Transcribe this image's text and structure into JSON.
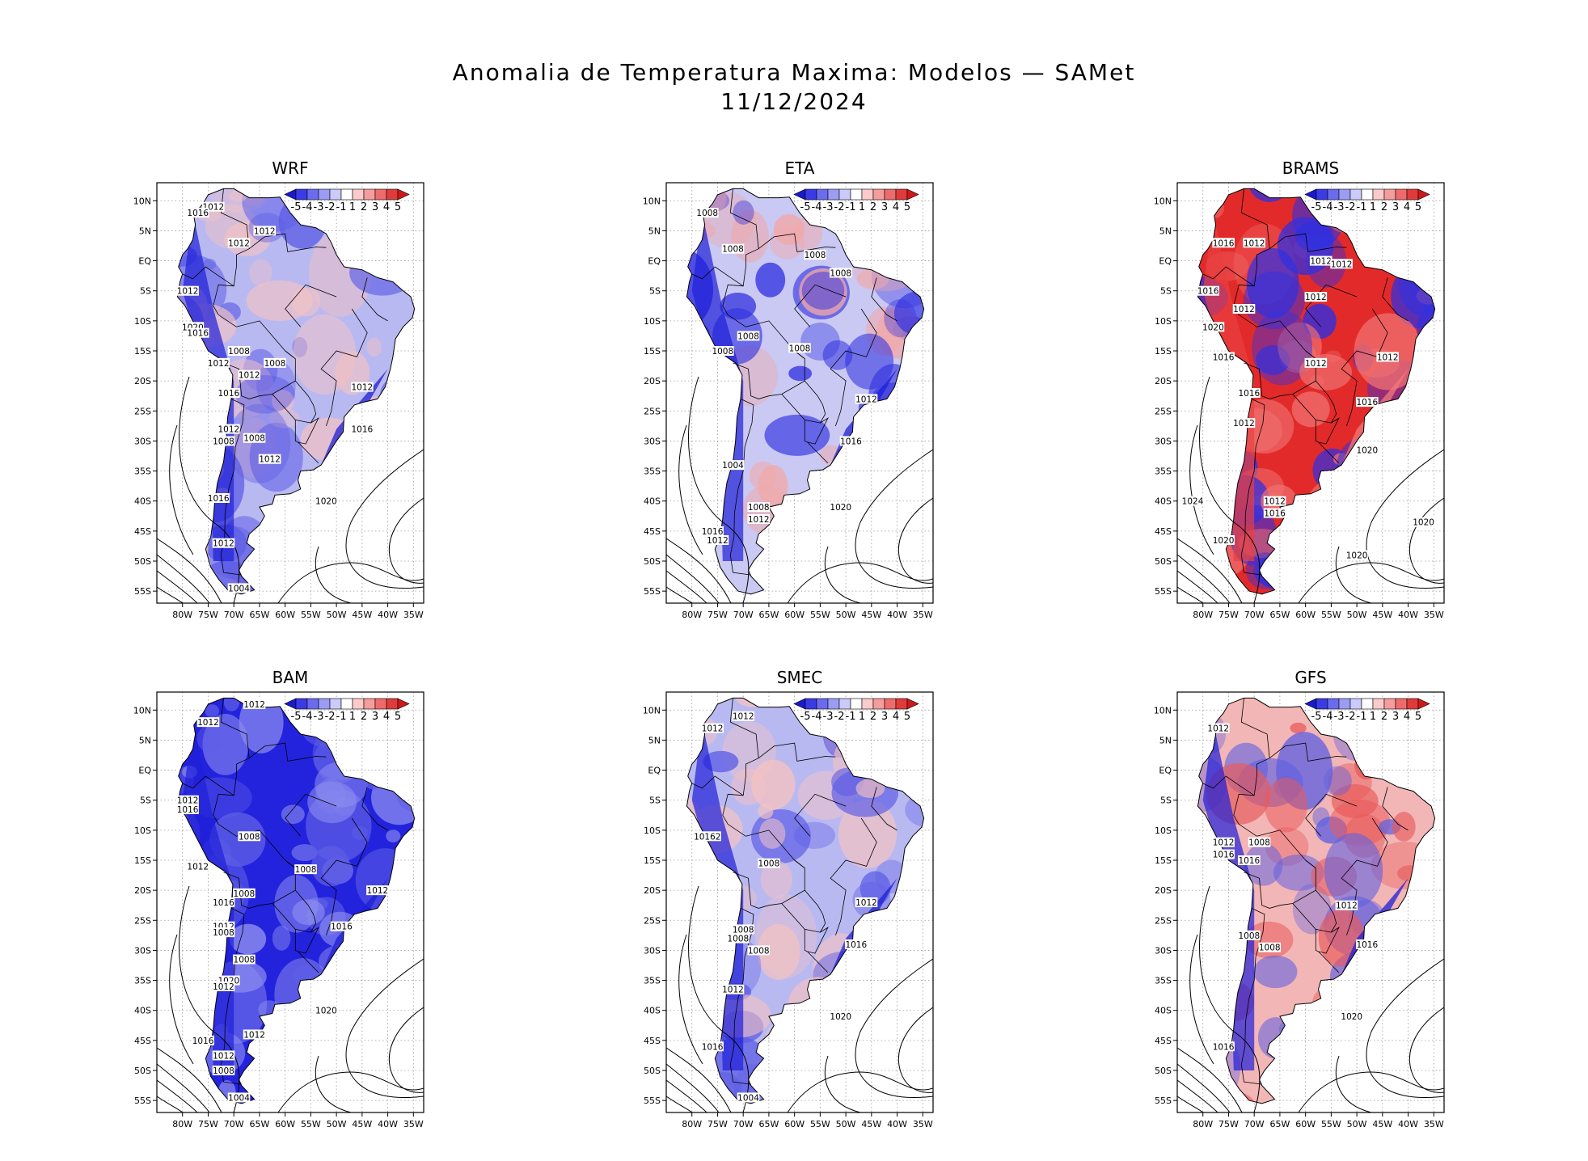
{
  "title": {
    "line1": "Anomalia de Temperatura Maxima: Modelos — SAMet",
    "line2": "11/12/2024"
  },
  "axes": {
    "lat_labels": [
      "10N",
      "5N",
      "EQ",
      "5S",
      "10S",
      "15S",
      "20S",
      "25S",
      "30S",
      "35S",
      "40S",
      "45S",
      "50S",
      "55S"
    ],
    "lon_labels": [
      "80W",
      "75W",
      "70W",
      "65W",
      "60W",
      "55W",
      "50W",
      "45W",
      "40W",
      "35W"
    ]
  },
  "colorbar": {
    "labels": [
      "-5",
      "-4",
      "-3",
      "-2",
      "-1",
      "1",
      "2",
      "3",
      "4",
      "5"
    ],
    "colors": [
      "#1a1acc",
      "#3b3be6",
      "#6b6bf0",
      "#9c9cf5",
      "#cacafb",
      "#ffffff",
      "#fbcaca",
      "#f59c9c",
      "#ef6b6b",
      "#e03b3b",
      "#cc1a1a"
    ]
  },
  "colors": {
    "cold": "#2323dd",
    "cold_light": "#a8a8ef",
    "warm": "#e32a2a",
    "warm_light": "#f3b3b3"
  },
  "panels": [
    {
      "name": "WRF",
      "tone": "mixed-cold",
      "isobars": [
        {
          "text": "1012",
          "lat": 9,
          "lon": -74
        },
        {
          "text": "1016",
          "lat": 8,
          "lon": -77
        },
        {
          "text": "1012",
          "lat": 5,
          "lon": -64
        },
        {
          "text": "1012",
          "lat": 3,
          "lon": -69
        },
        {
          "text": "1012",
          "lat": -5,
          "lon": -79
        },
        {
          "text": "1020",
          "lat": -11,
          "lon": -78
        },
        {
          "text": "1016",
          "lat": -12,
          "lon": -77
        },
        {
          "text": "1008",
          "lat": -15,
          "lon": -69
        },
        {
          "text": "1012",
          "lat": -17,
          "lon": -73
        },
        {
          "text": "1008",
          "lat": -17,
          "lon": -62
        },
        {
          "text": "1012",
          "lat": -19,
          "lon": -67
        },
        {
          "text": "1012",
          "lat": -21,
          "lon": -45
        },
        {
          "text": "1016",
          "lat": -22,
          "lon": -71
        },
        {
          "text": "1012",
          "lat": -28,
          "lon": -71
        },
        {
          "text": "1008",
          "lat": -30,
          "lon": -72
        },
        {
          "text": "1008",
          "lat": -29.5,
          "lon": -66
        },
        {
          "text": "1016",
          "lat": -28,
          "lon": -45
        },
        {
          "text": "1012",
          "lat": -33,
          "lon": -63
        },
        {
          "text": "1016",
          "lat": -39.5,
          "lon": -73
        },
        {
          "text": "1020",
          "lat": -40,
          "lon": -52
        },
        {
          "text": "1012",
          "lat": -47,
          "lon": -72
        },
        {
          "text": "1004",
          "lat": -54.5,
          "lon": -69
        }
      ]
    },
    {
      "name": "ETA",
      "tone": "mixed",
      "isobars": [
        {
          "text": "1008",
          "lat": 8,
          "lon": -77
        },
        {
          "text": "1008",
          "lat": 2,
          "lon": -72
        },
        {
          "text": "1008",
          "lat": 1,
          "lon": -56
        },
        {
          "text": "1008",
          "lat": -2,
          "lon": -51
        },
        {
          "text": "1008",
          "lat": -12.5,
          "lon": -69
        },
        {
          "text": "1008",
          "lat": -15,
          "lon": -74
        },
        {
          "text": "1008",
          "lat": -14.5,
          "lon": -59
        },
        {
          "text": "1012",
          "lat": -23,
          "lon": -46
        },
        {
          "text": "1016",
          "lat": -30,
          "lon": -49
        },
        {
          "text": "1004",
          "lat": -34,
          "lon": -72
        },
        {
          "text": "1008",
          "lat": -41,
          "lon": -67
        },
        {
          "text": "1020",
          "lat": -41,
          "lon": -51
        },
        {
          "text": "1012",
          "lat": -43,
          "lon": -67
        },
        {
          "text": "1016",
          "lat": -45,
          "lon": -76
        },
        {
          "text": "1012",
          "lat": -46.5,
          "lon": -75
        }
      ]
    },
    {
      "name": "BRAMS",
      "tone": "warm",
      "isobars": [
        {
          "text": "1016",
          "lat": 3,
          "lon": -76
        },
        {
          "text": "1012",
          "lat": 3,
          "lon": -70
        },
        {
          "text": "1012",
          "lat": 0,
          "lon": -57
        },
        {
          "text": "1012",
          "lat": -0.5,
          "lon": -53
        },
        {
          "text": "1016",
          "lat": -5,
          "lon": -79
        },
        {
          "text": "1012",
          "lat": -6,
          "lon": -58
        },
        {
          "text": "1012",
          "lat": -8,
          "lon": -72
        },
        {
          "text": "1020",
          "lat": -11,
          "lon": -78
        },
        {
          "text": "1016",
          "lat": -16,
          "lon": -76
        },
        {
          "text": "1012",
          "lat": -16,
          "lon": -44
        },
        {
          "text": "1012",
          "lat": -17,
          "lon": -58
        },
        {
          "text": "1016",
          "lat": -22,
          "lon": -71
        },
        {
          "text": "1016",
          "lat": -23.5,
          "lon": -48
        },
        {
          "text": "1012",
          "lat": -27,
          "lon": -72
        },
        {
          "text": "1020",
          "lat": -31.5,
          "lon": -48
        },
        {
          "text": "1012",
          "lat": -40,
          "lon": -66
        },
        {
          "text": "1024",
          "lat": -40,
          "lon": -82
        },
        {
          "text": "1016",
          "lat": -42,
          "lon": -66
        },
        {
          "text": "1020",
          "lat": -43.5,
          "lon": -37
        },
        {
          "text": "1020",
          "lat": -46.5,
          "lon": -76
        },
        {
          "text": "1020",
          "lat": -49,
          "lon": -50
        }
      ]
    },
    {
      "name": "BAM",
      "tone": "cold",
      "isobars": [
        {
          "text": "1012",
          "lat": 11,
          "lon": -66
        },
        {
          "text": "1012",
          "lat": 8,
          "lon": -75
        },
        {
          "text": "1012",
          "lat": -5,
          "lon": -79
        },
        {
          "text": "1016",
          "lat": -6.5,
          "lon": -79
        },
        {
          "text": "1008",
          "lat": -11,
          "lon": -67
        },
        {
          "text": "1012",
          "lat": -16,
          "lon": -77
        },
        {
          "text": "1008",
          "lat": -16.5,
          "lon": -56
        },
        {
          "text": "1012",
          "lat": -20,
          "lon": -42
        },
        {
          "text": "1008",
          "lat": -20.5,
          "lon": -68
        },
        {
          "text": "1016",
          "lat": -22,
          "lon": -72
        },
        {
          "text": "1016",
          "lat": -26,
          "lon": -49
        },
        {
          "text": "1012",
          "lat": -26,
          "lon": -72
        },
        {
          "text": "1008",
          "lat": -27,
          "lon": -72
        },
        {
          "text": "1008",
          "lat": -31.5,
          "lon": -68
        },
        {
          "text": "1020",
          "lat": -35,
          "lon": -71
        },
        {
          "text": "1012",
          "lat": -36,
          "lon": -72
        },
        {
          "text": "1020",
          "lat": -40,
          "lon": -52
        },
        {
          "text": "1012",
          "lat": -44,
          "lon": -66
        },
        {
          "text": "1016",
          "lat": -45,
          "lon": -76
        },
        {
          "text": "1012",
          "lat": -47.5,
          "lon": -72
        },
        {
          "text": "1008",
          "lat": -50,
          "lon": -72
        },
        {
          "text": "1004",
          "lat": -54.5,
          "lon": -69
        }
      ]
    },
    {
      "name": "SMEC",
      "tone": "mixed-cold",
      "isobars": [
        {
          "text": "1012",
          "lat": 9,
          "lon": -70
        },
        {
          "text": "1012",
          "lat": 7,
          "lon": -76
        },
        {
          "text": "10162",
          "lat": -11,
          "lon": -77
        },
        {
          "text": "1008",
          "lat": -15.5,
          "lon": -65
        },
        {
          "text": "1012",
          "lat": -22,
          "lon": -46
        },
        {
          "text": "1008",
          "lat": -26.5,
          "lon": -70
        },
        {
          "text": "1008",
          "lat": -28,
          "lon": -71
        },
        {
          "text": "1016",
          "lat": -29,
          "lon": -48
        },
        {
          "text": "1008",
          "lat": -30,
          "lon": -67
        },
        {
          "text": "1012",
          "lat": -36.5,
          "lon": -72
        },
        {
          "text": "1020",
          "lat": -41,
          "lon": -51
        },
        {
          "text": "1016",
          "lat": -46,
          "lon": -76
        },
        {
          "text": "1004",
          "lat": -54.5,
          "lon": -69
        }
      ]
    },
    {
      "name": "GFS",
      "tone": "mixed-warm",
      "isobars": [
        {
          "text": "1012",
          "lat": 7,
          "lon": -77
        },
        {
          "text": "1012",
          "lat": -12,
          "lon": -76
        },
        {
          "text": "1008",
          "lat": -12,
          "lon": -69
        },
        {
          "text": "1016",
          "lat": -14,
          "lon": -76
        },
        {
          "text": "1016",
          "lat": -15,
          "lon": -71
        },
        {
          "text": "1012",
          "lat": -22.5,
          "lon": -52
        },
        {
          "text": "1008",
          "lat": -27.5,
          "lon": -71
        },
        {
          "text": "1008",
          "lat": -29.5,
          "lon": -67
        },
        {
          "text": "1016",
          "lat": -29,
          "lon": -48
        },
        {
          "text": "1020",
          "lat": -41,
          "lon": -51
        },
        {
          "text": "1016",
          "lat": -46,
          "lon": -76
        }
      ]
    }
  ]
}
